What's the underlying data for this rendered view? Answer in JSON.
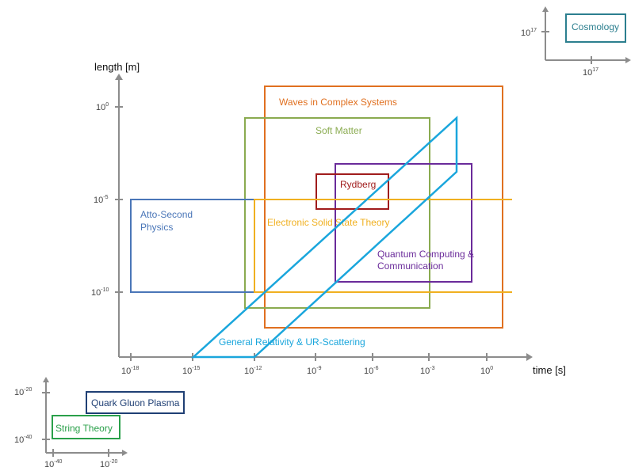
{
  "main_axes": {
    "x_title": "time [s]",
    "y_title": "length [m]",
    "x_ticks": [
      {
        "base": "10",
        "exp": "-18"
      },
      {
        "base": "10",
        "exp": "-15"
      },
      {
        "base": "10",
        "exp": "-12"
      },
      {
        "base": "10",
        "exp": "-9"
      },
      {
        "base": "10",
        "exp": "-6"
      },
      {
        "base": "10",
        "exp": "-3"
      },
      {
        "base": "10",
        "exp": "0"
      }
    ],
    "y_ticks": [
      {
        "base": "10",
        "exp": "0"
      },
      {
        "base": "10",
        "exp": "-5"
      },
      {
        "base": "10",
        "exp": "-10"
      }
    ]
  },
  "regions": [
    {
      "id": "waves",
      "label": "Waves in Complex Systems",
      "color": "#e07020"
    },
    {
      "id": "soft",
      "label": "Soft Matter",
      "color": "#8aab50"
    },
    {
      "id": "rydberg",
      "label": "Rydberg",
      "color": "#a01c1c"
    },
    {
      "id": "quantum",
      "lines": [
        "Quantum Computing &",
        "Communication"
      ],
      "color": "#6a2b9a"
    },
    {
      "id": "atto",
      "lines": [
        "Atto-Second",
        "Physics"
      ],
      "color": "#4a76b8"
    },
    {
      "id": "electronic",
      "label": "Electronic Solid State Theory",
      "color": "#f0b020"
    },
    {
      "id": "gr",
      "label": "General Relativity & UR-Scattering",
      "color": "#1aa6dc"
    }
  ],
  "cosmology_inset": {
    "label": "Cosmology",
    "color": "#2c7f8f",
    "x_tick": {
      "base": "10",
      "exp": "17"
    },
    "y_tick": {
      "base": "10",
      "exp": "17"
    }
  },
  "small_inset": {
    "x_ticks": [
      {
        "base": "10",
        "exp": "-40"
      },
      {
        "base": "10",
        "exp": "-20"
      }
    ],
    "y_ticks": [
      {
        "base": "10",
        "exp": "-20"
      },
      {
        "base": "10",
        "exp": "-40"
      }
    ],
    "quark": {
      "label": "Quark Gluon Plasma",
      "color": "#1f3f74"
    },
    "string": {
      "label": "String Theory",
      "color": "#2aa04a"
    }
  }
}
